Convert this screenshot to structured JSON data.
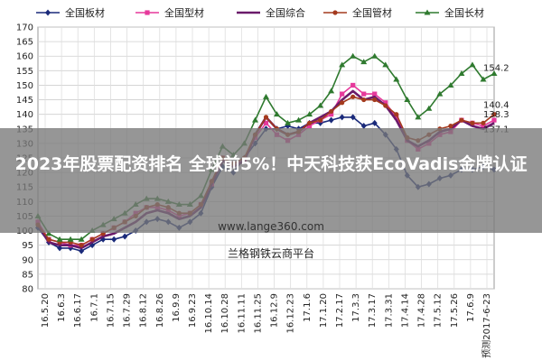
{
  "overlay": {
    "headline": "2023年股票配资排名 全球前5%！中天科技获EcoVadis金牌认证",
    "url": "www.lange360.com",
    "source": "兰格钢铁云商平台"
  },
  "chart_data": {
    "type": "line",
    "ylim": [
      80,
      170
    ],
    "yticks": [
      80,
      85,
      90,
      95,
      100,
      105,
      110,
      115,
      120,
      125,
      130,
      135,
      140,
      145,
      150,
      155,
      160,
      165,
      170
    ],
    "grid": true,
    "legend_position": "top",
    "xtick_labels": [
      "16.5.20",
      "16.6.3",
      "16.6.17",
      "16.7.1",
      "16.7.15",
      "16.7.29",
      "16.8.12",
      "16.8.26",
      "16.9.9",
      "16.9.23",
      "16.10.14",
      "16.10.28",
      "16.11.11",
      "16.11.25",
      "16.12.9",
      "16.12.23",
      "17.1.6",
      "17.1.20",
      "17.2.17",
      "17.3.3",
      "17.3.17",
      "17.3.31",
      "17.4.14",
      "17.4.28",
      "17.5.12",
      "17.5.26",
      "17.6.9",
      "预测2017-6-23"
    ],
    "series": [
      {
        "name": "全国板材",
        "color": "#1a2a7a",
        "marker": "diamond",
        "values": [
          101,
          96,
          94,
          94,
          93,
          95,
          97,
          97,
          98,
          100,
          103,
          104,
          103,
          101,
          103,
          106,
          115,
          122,
          120,
          125,
          130,
          135,
          135,
          136,
          135,
          137,
          137,
          138,
          139,
          139,
          136,
          137,
          133,
          128,
          119,
          115,
          116,
          118,
          119,
          121,
          121,
          122,
          121
        ]
      },
      {
        "name": "全国型材",
        "color": "#e6399b",
        "marker": "square",
        "values": [
          103,
          97,
          96,
          95,
          95,
          97,
          99,
          101,
          103,
          106,
          108,
          108,
          107,
          105,
          106,
          109,
          116,
          125,
          123,
          124,
          132,
          137,
          133,
          131,
          133,
          136,
          138,
          140,
          147,
          150,
          147,
          147,
          144,
          139,
          131,
          128,
          130,
          133,
          134,
          138,
          137,
          136,
          138
        ]
      },
      {
        "name": "全国综合",
        "color": "#6a1a6a",
        "marker": "none",
        "values": [
          102,
          96,
          95,
          95,
          94,
          96,
          98,
          99,
          101,
          103,
          106,
          107,
          106,
          104,
          105,
          108,
          116,
          124,
          122,
          124,
          133,
          139,
          135,
          133,
          134,
          137,
          139,
          141,
          145,
          148,
          145,
          146,
          143,
          138,
          131,
          129,
          131,
          134,
          135,
          138,
          136,
          135,
          137
        ]
      },
      {
        "name": "全国管材",
        "color": "#a43a1e",
        "marker": "circle",
        "values": [
          102,
          97,
          96,
          96,
          95,
          97,
          99,
          101,
          103,
          105,
          108,
          109,
          108,
          106,
          106,
          109,
          117,
          125,
          123,
          125,
          133,
          139,
          135,
          133,
          134,
          137,
          138,
          141,
          144,
          146,
          145,
          145,
          143,
          140,
          132,
          131,
          133,
          135,
          136,
          138,
          137,
          137,
          140
        ]
      },
      {
        "name": "全国长材",
        "color": "#2f7a2f",
        "marker": "triangle",
        "values": [
          105,
          99,
          97,
          97,
          97,
          100,
          102,
          104,
          106,
          109,
          111,
          111,
          110,
          109,
          109,
          112,
          121,
          129,
          126,
          130,
          138,
          146,
          140,
          137,
          138,
          140,
          143,
          148,
          157,
          160,
          158,
          160,
          157,
          152,
          145,
          139,
          142,
          147,
          150,
          154,
          157,
          152,
          154
        ]
      }
    ],
    "end_labels": [
      {
        "text": "154.2",
        "series": "全国长材"
      },
      {
        "text": "140.4",
        "series": "全国管材"
      },
      {
        "text": "138.3",
        "series": "全国型材"
      },
      {
        "text": "137.1",
        "series": "全国综合"
      }
    ]
  }
}
